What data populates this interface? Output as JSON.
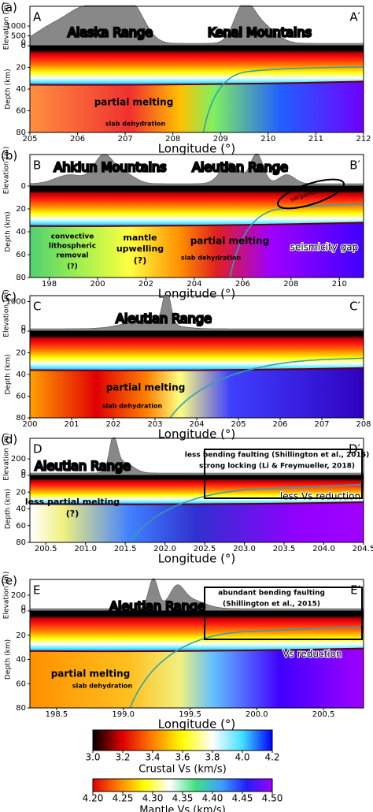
{
  "chart_data": [
    {
      "type": "cross-section",
      "panel_label": "(a)",
      "start_label": "A",
      "end_label": "A′",
      "elevation_label": "Elevation (m)",
      "ylabel": "Depth (km)",
      "xlabel": "Longitude (°)",
      "xlim": [
        205,
        212
      ],
      "xticks": [
        205,
        206,
        207,
        208,
        209,
        210,
        211,
        212
      ],
      "ylim": [
        0,
        80
      ],
      "yticks": [
        0,
        20,
        40,
        60,
        80
      ],
      "y_inverted": true,
      "elevation_ylim": [
        0,
        2000
      ],
      "elevation_yticks": [
        0,
        500,
        1000
      ],
      "annotations": [
        "Alaska Range",
        "Kenai Mountains",
        "partial melting",
        "slab dehydration"
      ]
    },
    {
      "type": "cross-section",
      "panel_label": "(b)",
      "start_label": "B",
      "end_label": "B′",
      "elevation_label": "Elevation (m)",
      "ylabel": "Depth (km)",
      "xlabel": "Longitude (°)",
      "xlim": [
        197.2,
        211
      ],
      "xticks": [
        198,
        200,
        202,
        204,
        206,
        208,
        210
      ],
      "ylim": [
        0,
        80
      ],
      "yticks": [
        0,
        20,
        40,
        60,
        80
      ],
      "y_inverted": true,
      "annotations": [
        "Ahklun Mountains",
        "Aleutian Range",
        "serpentinite",
        "seismicity gap",
        "convective",
        "lithospheric",
        "removal",
        "(?)",
        "mantle",
        "upwelling",
        "(?)",
        "partial melting",
        "slab dehydration"
      ]
    },
    {
      "type": "cross-section",
      "panel_label": "(c)",
      "start_label": "C",
      "end_label": "C′",
      "elevation_label": "Elevation (m)",
      "ylabel": "Depth (km)",
      "xlabel": "Longitude (°)",
      "xlim": [
        200,
        208
      ],
      "xticks": [
        200,
        201,
        202,
        203,
        204,
        205,
        206,
        207,
        208
      ],
      "ylim": [
        0,
        80
      ],
      "yticks": [
        0,
        20,
        40,
        60,
        80
      ],
      "y_inverted": true,
      "elevation_ylim": [
        0,
        1200
      ],
      "elevation_yticks": [
        0,
        1000
      ],
      "annotations": [
        "Aleutian Range",
        "partial melting",
        "slab dehydration"
      ]
    },
    {
      "type": "cross-section",
      "panel_label": "(d)",
      "start_label": "D",
      "end_label": "D′",
      "elevation_label": "Elevation (m)",
      "ylabel": "Depth (km)",
      "xlabel": "Longitude (°)",
      "xlim": [
        200.3,
        204.5
      ],
      "xticks": [
        200.5,
        {
          "value": 201,
          "label": "201.0"
        },
        201.5,
        {
          "value": 202,
          "label": "202.0"
        },
        202.5,
        {
          "value": 203,
          "label": "203.0"
        },
        203.5,
        {
          "value": 204,
          "label": "204.0"
        },
        204.5
      ],
      "ylim": [
        0,
        80
      ],
      "yticks": [
        0,
        20,
        40,
        60,
        80
      ],
      "y_inverted": true,
      "elevation_ylim": [
        0,
        450
      ],
      "elevation_yticks": [
        0,
        200
      ],
      "annotations": [
        "Aleutian Range",
        "less bending faulting (Shillington et al., 2015)",
        "strong locking (Li & Freymueller, 2018)",
        "less partial melting",
        "(?)",
        "less Vs reduction"
      ]
    },
    {
      "type": "cross-section",
      "panel_label": "(e)",
      "start_label": "E",
      "end_label": "E′",
      "elevation_label": "Elevation (m)",
      "ylabel": "Depth (km)",
      "xlabel": "Longitude (°)",
      "xlim": [
        198.3,
        200.8
      ],
      "xticks": [
        198.5,
        {
          "value": 199,
          "label": "199.0"
        },
        199.5,
        {
          "value": 200,
          "label": "200.0"
        },
        200.5
      ],
      "ylim": [
        0,
        80
      ],
      "yticks": [
        0,
        20,
        40,
        60,
        80
      ],
      "y_inverted": true,
      "elevation_ylim": [
        0,
        400
      ],
      "elevation_yticks": [
        0,
        200
      ],
      "annotations": [
        "Aleutian Range",
        "abundant bending faulting",
        "(Shillington et al., 2015)",
        "partial melting",
        "slab dehydration",
        "Vs reduction"
      ]
    },
    {
      "type": "colorbar",
      "title": "Crustal Vs (km/s)",
      "colors": [
        "#000000",
        "#e00000",
        "#ff8000",
        "#ffff00",
        "#ffffff",
        "#40e0ff",
        "#0000ff"
      ],
      "xlim": [
        3.0,
        4.2
      ],
      "xticks": [
        {
          "value": 3,
          "label": "3.0"
        },
        3.2,
        3.4,
        3.6,
        3.8,
        {
          "value": 4,
          "label": "4.0"
        },
        4.2
      ]
    },
    {
      "type": "colorbar",
      "title": "Mantle Vs (km/s)",
      "colors": [
        "#e00000",
        "#ff8000",
        "#ffff00",
        "#ffffff",
        "#40e080",
        "#40a0ff",
        "#2020ff",
        "#a000ff"
      ],
      "xlim": [
        4.2,
        4.5
      ],
      "xticks": [
        {
          "value": 4.2,
          "label": "4.20"
        },
        4.25,
        {
          "value": 4.3,
          "label": "4.30"
        },
        4.35,
        {
          "value": 4.4,
          "label": "4.40"
        },
        4.45,
        {
          "value": 4.5,
          "label": "4.50"
        }
      ]
    }
  ]
}
